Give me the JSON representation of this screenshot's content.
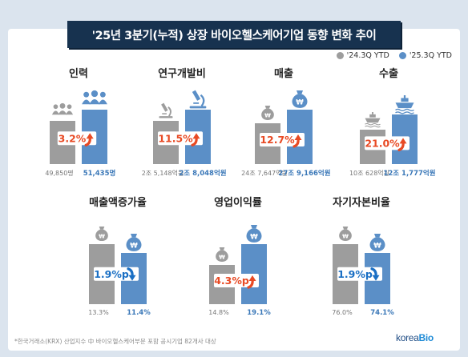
{
  "title": "'25년 3분기(누적) 상장 바이오헬스케어기업 동향 변화 추이",
  "legend": [
    {
      "label": "'24.3Q YTD",
      "color": "#9d9d9d"
    },
    {
      "label": "'25.3Q YTD",
      "color": "#5b8fc7"
    }
  ],
  "colors": {
    "prev": "#9d9d9d",
    "curr": "#5b8fc7",
    "up": "#e84a24",
    "down": "#1a6fc4",
    "value_prev": "#777777",
    "value_curr": "#3b78b8"
  },
  "footnote": "*한국거래소(KRX) 산업지수 中 바이오헬스케어부문 포함 공시기업 82개사 대상",
  "logo": {
    "text1": "korea",
    "text2": "Bio"
  },
  "chart_data": [
    {
      "type": "bar",
      "title": "인력",
      "series": [
        {
          "name": "'24.3Q YTD",
          "values": [
            49850
          ]
        },
        {
          "name": "'25.3Q YTD",
          "values": [
            51435
          ]
        }
      ],
      "value_labels": [
        "49,850명",
        "51,435명"
      ],
      "change": "3.2%",
      "direction": "up",
      "icon": "people-icon"
    },
    {
      "type": "bar",
      "title": "연구개발비",
      "series": [
        {
          "name": "'24.3Q YTD",
          "values": [
            25148
          ]
        },
        {
          "name": "'25.3Q YTD",
          "values": [
            28048
          ]
        }
      ],
      "value_labels": [
        "2조 5,148억원",
        "2조 8,048억원"
      ],
      "change": "11.5%",
      "direction": "up",
      "icon": "microscope-icon"
    },
    {
      "type": "bar",
      "title": "매출",
      "series": [
        {
          "name": "'24.3Q YTD",
          "values": [
            247647
          ]
        },
        {
          "name": "'25.3Q YTD",
          "values": [
            279166
          ]
        }
      ],
      "value_labels": [
        "24조 7,647억원",
        "27조 9,166억원"
      ],
      "change": "12.7%",
      "direction": "up",
      "icon": "money-bag-icon"
    },
    {
      "type": "bar",
      "title": "수출",
      "series": [
        {
          "name": "'24.3Q YTD",
          "values": [
            100628
          ]
        },
        {
          "name": "'25.3Q YTD",
          "values": [
            121777
          ]
        }
      ],
      "value_labels": [
        "10조 628억원",
        "12조 1,777억원"
      ],
      "change": "21.0%",
      "direction": "up",
      "icon": "ship-icon"
    },
    {
      "type": "bar",
      "title": "매출액증가율",
      "series": [
        {
          "name": "'24.3Q YTD",
          "values": [
            13.3
          ]
        },
        {
          "name": "'25.3Q YTD",
          "values": [
            11.4
          ]
        }
      ],
      "value_labels": [
        "13.3%",
        "11.4%"
      ],
      "change": "1.9%p",
      "direction": "down",
      "icon": "money-bag-icon"
    },
    {
      "type": "bar",
      "title": "영업이익률",
      "series": [
        {
          "name": "'24.3Q YTD",
          "values": [
            14.8
          ]
        },
        {
          "name": "'25.3Q YTD",
          "values": [
            19.1
          ]
        }
      ],
      "value_labels": [
        "14.8%",
        "19.1%"
      ],
      "change": "4.3%p",
      "direction": "up",
      "icon": "money-bag-icon"
    },
    {
      "type": "bar",
      "title": "자기자본비율",
      "series": [
        {
          "name": "'24.3Q YTD",
          "values": [
            76.0
          ]
        },
        {
          "name": "'25.3Q YTD",
          "values": [
            74.1
          ]
        }
      ],
      "value_labels": [
        "76.0%",
        "74.1%"
      ],
      "change": "1.9%p",
      "direction": "down",
      "icon": "money-bag-icon"
    }
  ]
}
